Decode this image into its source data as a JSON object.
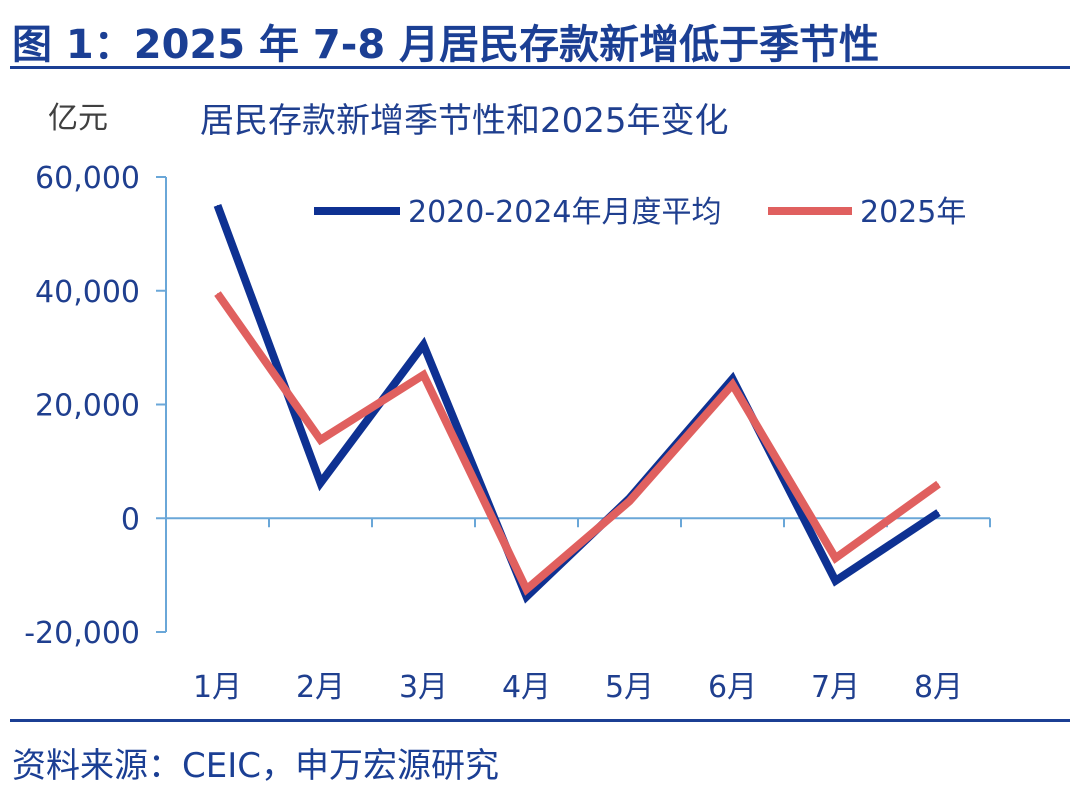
{
  "figure_title": "图 1：2025 年 7-8 月居民存款新增低于季节性",
  "source": "资料来源：CEIC，申万宏源研究",
  "colors": {
    "title": "#1b3f94",
    "axis": "#6aa7d8",
    "series_avg": "#0e3192",
    "series_2025": "#e0605f",
    "text": "#1f3f8f",
    "unit": "#404040"
  },
  "chart_data": {
    "type": "line",
    "title": "居民存款新增季节性和2025年变化",
    "unit_label": "亿元",
    "xlabel": "",
    "ylabel": "",
    "categories": [
      "1月",
      "2月",
      "3月",
      "4月",
      "5月",
      "6月",
      "7月",
      "8月"
    ],
    "ylim": [
      -20000,
      60000
    ],
    "yticks": [
      -20000,
      0,
      20000,
      40000,
      60000
    ],
    "ytick_labels": [
      "-20,000",
      "0",
      "20,000",
      "40,000",
      "60,000"
    ],
    "grid": false,
    "legend_position": "top-right",
    "series": [
      {
        "name": "2020-2024年月度平均",
        "values": [
          55000,
          6200,
          30500,
          -13800,
          3500,
          24500,
          -11000,
          1000
        ]
      },
      {
        "name": "2025年",
        "values": [
          39500,
          13800,
          25200,
          -12500,
          3000,
          23500,
          -7000,
          6000
        ]
      }
    ]
  }
}
